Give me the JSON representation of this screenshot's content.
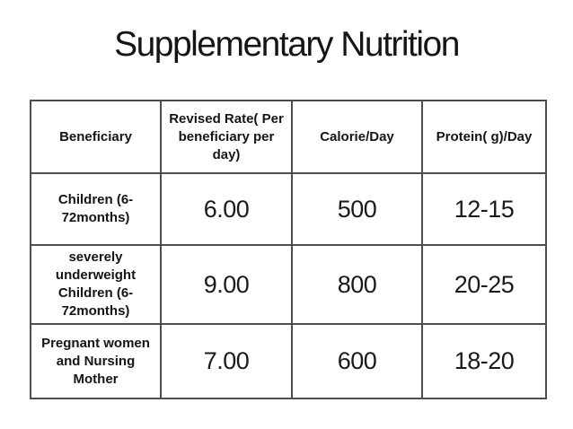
{
  "title": "Supplementary Nutrition",
  "table": {
    "columns": [
      "Beneficiary",
      "Revised Rate( Per\nbeneficiary per\nday)",
      "Calorie/Day",
      "Protein( g)/Day"
    ],
    "rows": [
      {
        "beneficiary": "Children (6-\n72months)",
        "rate": "6.00",
        "calorie": "500",
        "protein": "12-15"
      },
      {
        "beneficiary": "severely\nunderweight\nChildren (6-\n72months)",
        "rate": "9.00",
        "calorie": "800",
        "protein": "20-25"
      },
      {
        "beneficiary": "Pregnant women\nand Nursing\nMother",
        "rate": "7.00",
        "calorie": "600",
        "protein": "18-20"
      }
    ]
  },
  "colors": {
    "background": "#ffffff",
    "text": "#1a1a1a",
    "table_border": "#4d4d4d"
  }
}
